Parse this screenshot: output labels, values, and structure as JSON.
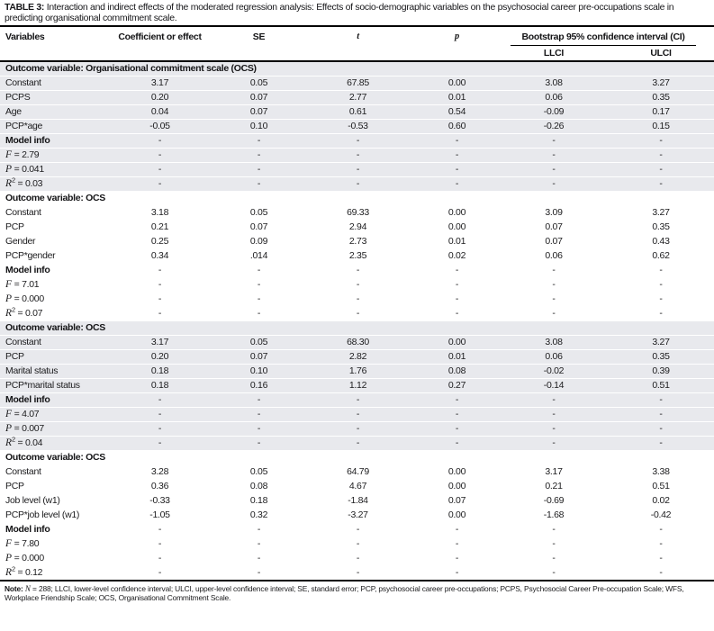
{
  "title": {
    "label": "TABLE 3:",
    "text": "Interaction and indirect effects of the moderated regression analysis: Effects of socio-demographic variables on the psychosocial career pre-occupations scale in predicting organisational commitment scale."
  },
  "header": {
    "columns": [
      "Variables",
      "Coefficient or effect",
      "SE",
      "t",
      "p"
    ],
    "ci_label": "Bootstrap 95% confidence interval (CI)",
    "ci_sub": [
      "LLCI",
      "ULCI"
    ]
  },
  "table": {
    "sections": [
      {
        "header": "Outcome variable: Organisational commitment scale (OCS)",
        "shaded": true,
        "rows": [
          {
            "v": "Constant",
            "values": [
              "3.17",
              "0.05",
              "67.85",
              "0.00",
              "3.08",
              "3.27"
            ]
          },
          {
            "v": "PCPS",
            "values": [
              "0.20",
              "0.07",
              "2.77",
              "0.01",
              "0.06",
              "0.35"
            ]
          },
          {
            "v": "Age",
            "values": [
              "0.04",
              "0.07",
              "0.61",
              "0.54",
              "-0.09",
              "0.17"
            ]
          },
          {
            "v": "PCP*age",
            "values": [
              "-0.05",
              "0.10",
              "-0.53",
              "0.60",
              "-0.26",
              "0.15"
            ]
          },
          {
            "v": "Model info",
            "bold": true,
            "values": [
              "-",
              "-",
              "-",
              "-",
              "-",
              "-"
            ]
          },
          {
            "math": "F",
            "eq": " = 2.79",
            "values": [
              "-",
              "-",
              "-",
              "-",
              "-",
              "-"
            ]
          },
          {
            "math": "P",
            "eq": " = 0.041",
            "values": [
              "-",
              "-",
              "-",
              "-",
              "-",
              "-"
            ]
          },
          {
            "math": "R",
            "sup": "2",
            "eq": " = 0.03",
            "values": [
              "-",
              "-",
              "-",
              "-",
              "-",
              "-"
            ]
          }
        ]
      },
      {
        "header": "Outcome variable: OCS",
        "shaded": false,
        "rows": [
          {
            "v": "Constant",
            "values": [
              "3.18",
              "0.05",
              "69.33",
              "0.00",
              "3.09",
              "3.27"
            ]
          },
          {
            "v": "PCP",
            "values": [
              "0.21",
              "0.07",
              "2.94",
              "0.00",
              "0.07",
              "0.35"
            ]
          },
          {
            "v": "Gender",
            "values": [
              "0.25",
              "0.09",
              "2.73",
              "0.01",
              "0.07",
              "0.43"
            ]
          },
          {
            "v": "PCP*gender",
            "values": [
              "0.34",
              ".014",
              "2.35",
              "0.02",
              "0.06",
              "0.62"
            ]
          },
          {
            "v": "Model info",
            "bold": true,
            "values": [
              "-",
              "-",
              "-",
              "-",
              "-",
              "-"
            ]
          },
          {
            "math": "F",
            "eq": " = 7.01",
            "values": [
              "-",
              "-",
              "-",
              "-",
              "-",
              "-"
            ]
          },
          {
            "math": "P",
            "eq": " = 0.000",
            "values": [
              "-",
              "-",
              "-",
              "-",
              "-",
              "-"
            ]
          },
          {
            "math": "R",
            "sup": "2",
            "eq": " = 0.07",
            "values": [
              "-",
              "-",
              "-",
              "-",
              "-",
              "-"
            ]
          }
        ]
      },
      {
        "header": "Outcome variable: OCS",
        "shaded": true,
        "rows": [
          {
            "v": "Constant",
            "values": [
              "3.17",
              "0.05",
              "68.30",
              "0.00",
              "3.08",
              "3.27"
            ]
          },
          {
            "v": "PCP",
            "values": [
              "0.20",
              "0.07",
              "2.82",
              "0.01",
              "0.06",
              "0.35"
            ]
          },
          {
            "v": "Marital status",
            "values": [
              "0.18",
              "0.10",
              "1.76",
              "0.08",
              "-0.02",
              "0.39"
            ]
          },
          {
            "v": "PCP*marital status",
            "values": [
              "0.18",
              "0.16",
              "1.12",
              "0.27",
              "-0.14",
              "0.51"
            ]
          },
          {
            "v": "Model info",
            "bold": true,
            "values": [
              "-",
              "-",
              "-",
              "-",
              "-",
              "-"
            ]
          },
          {
            "math": "F",
            "eq": " = 4.07",
            "values": [
              "-",
              "-",
              "-",
              "-",
              "-",
              "-"
            ]
          },
          {
            "math": "P",
            "eq": " = 0.007",
            "values": [
              "-",
              "-",
              "-",
              "-",
              "-",
              "-"
            ]
          },
          {
            "math": "R",
            "sup": "2",
            "eq": " = 0.04",
            "values": [
              "-",
              "-",
              "-",
              "-",
              "-",
              "-"
            ]
          }
        ]
      },
      {
        "header": "Outcome variable: OCS",
        "shaded": false,
        "rows": [
          {
            "v": "Constant",
            "values": [
              "3.28",
              "0.05",
              "64.79",
              "0.00",
              "3.17",
              "3.38"
            ]
          },
          {
            "v": "PCP",
            "values": [
              "0.36",
              "0.08",
              "4.67",
              "0.00",
              "0.21",
              "0.51"
            ]
          },
          {
            "v": "Job level (w1)",
            "values": [
              "-0.33",
              "0.18",
              "-1.84",
              "0.07",
              "-0.69",
              "0.02"
            ]
          },
          {
            "v": "PCP*job level (w1)",
            "values": [
              "-1.05",
              "0.32",
              "-3.27",
              "0.00",
              "-1.68",
              "-0.42"
            ]
          },
          {
            "v": "Model info",
            "bold": true,
            "values": [
              "-",
              "-",
              "-",
              "-",
              "-",
              "-"
            ]
          },
          {
            "math": "F",
            "eq": " = 7.80",
            "values": [
              "-",
              "-",
              "-",
              "-",
              "-",
              "-"
            ]
          },
          {
            "math": "P",
            "eq": " = 0.000",
            "values": [
              "-",
              "-",
              "-",
              "-",
              "-",
              "-"
            ]
          },
          {
            "math": "R",
            "sup": "2",
            "eq": " = 0.12",
            "values": [
              "-",
              "-",
              "-",
              "-",
              "-",
              "-"
            ]
          }
        ]
      }
    ]
  },
  "note": {
    "label": "Note:",
    "n": "N",
    "rest": " = 288; LLCI, lower-level confidence interval; ULCI, upper-level confidence interval; SE, standard error; PCP, psychosocial career pre-occupations; PCPS, Psychosocial Career Pre-occupation Scale; WFS, Workplace Friendship Scale; OCS, Organisational Commitment Scale."
  },
  "colors": {
    "shaded_row_bg": "#e8e9ed",
    "rule": "#000000",
    "text": "#1b1b1d"
  }
}
